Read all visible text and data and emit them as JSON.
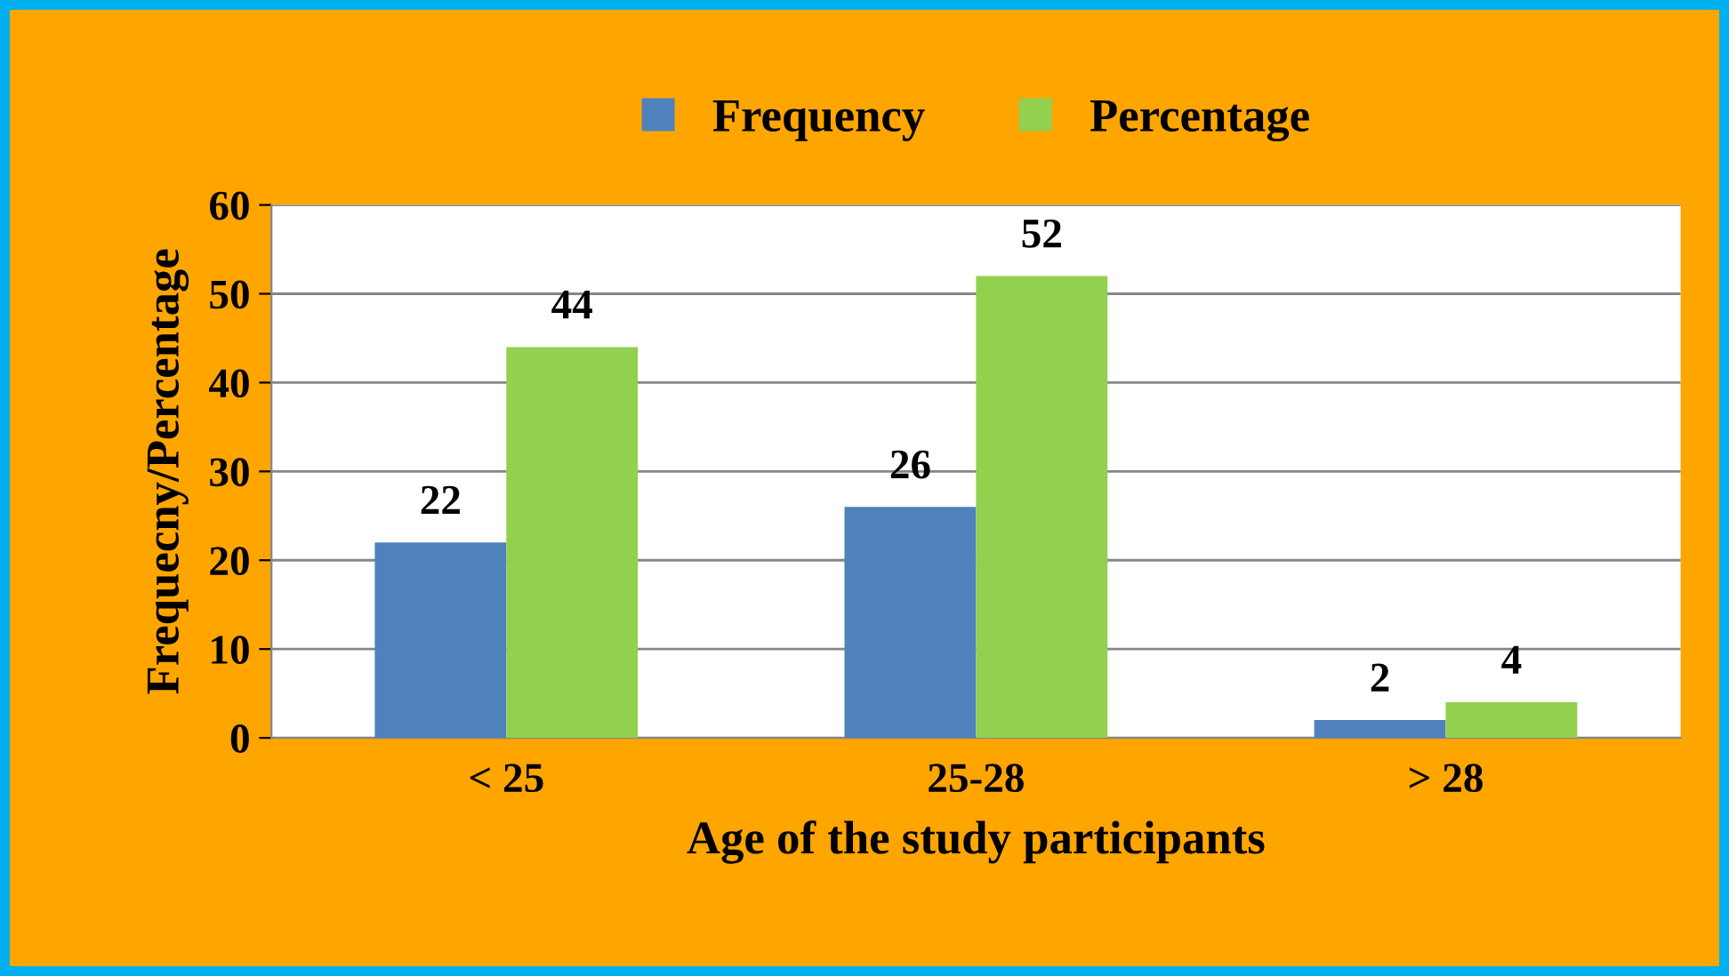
{
  "chart_data": {
    "type": "bar",
    "xlabel": "Age of the study participants",
    "ylabel": "Frequecny/Percentage",
    "categories": [
      "< 25",
      "25-28",
      "> 28"
    ],
    "series": [
      {
        "name": "Frequency",
        "color": "#4f81bd",
        "values": [
          22,
          26,
          2
        ]
      },
      {
        "name": "Percentage",
        "color": "#92d050",
        "values": [
          44,
          52,
          4
        ]
      }
    ],
    "ylim": [
      0,
      60
    ],
    "yticks": [
      0,
      10,
      20,
      30,
      40,
      50,
      60
    ],
    "grid": "y",
    "legend": "top",
    "data_labels": true
  }
}
